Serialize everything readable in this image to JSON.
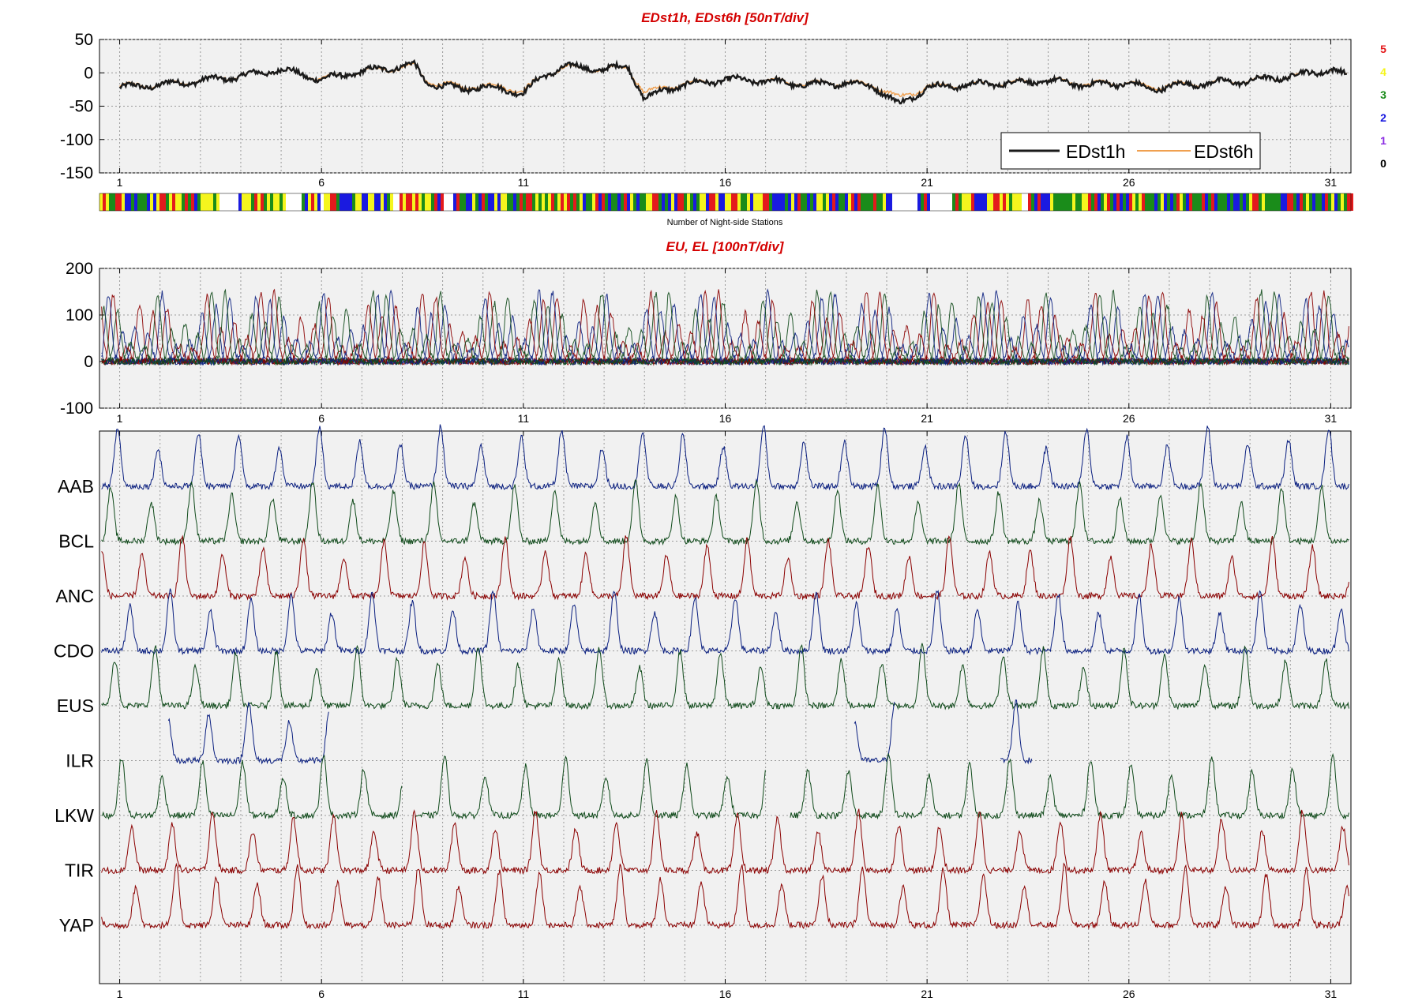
{
  "chart_data": [
    {
      "type": "line",
      "title": "EDst1h, EDst6h [50nT/div]",
      "x_ticks": [
        "1",
        "6",
        "11",
        "16",
        "21",
        "26",
        "31"
      ],
      "xlim": [
        0.5,
        31.5
      ],
      "y_ticks": [
        "50",
        "0",
        "-50",
        "-100",
        "-150"
      ],
      "ylim": [
        -150,
        50
      ],
      "grid": true,
      "legend_position": "bottom-right",
      "series": [
        {
          "name": "EDst1h",
          "color": "#1a1a1a",
          "points": [
            [
              1,
              -22
            ],
            [
              2,
              -18
            ],
            [
              3,
              -12
            ],
            [
              4,
              -5
            ],
            [
              5,
              5
            ],
            [
              6,
              -10
            ],
            [
              7,
              2
            ],
            [
              8,
              10
            ],
            [
              8.3,
              12
            ],
            [
              8.6,
              -15
            ],
            [
              9.5,
              -25
            ],
            [
              10,
              -20
            ],
            [
              11,
              -30
            ],
            [
              11.5,
              -5
            ],
            [
              12,
              10
            ],
            [
              13,
              5
            ],
            [
              13.6,
              10
            ],
            [
              14,
              -40
            ],
            [
              14.5,
              -25
            ],
            [
              15,
              -18
            ],
            [
              16,
              -10
            ],
            [
              17,
              -12
            ],
            [
              18,
              -18
            ],
            [
              19,
              -15
            ],
            [
              19.7,
              -20
            ],
            [
              20.3,
              -48
            ],
            [
              21,
              -22
            ],
            [
              22,
              -18
            ],
            [
              23,
              -15
            ],
            [
              24,
              -12
            ],
            [
              25,
              -18
            ],
            [
              26,
              -15
            ],
            [
              26.5,
              -25
            ],
            [
              27,
              -20
            ],
            [
              28,
              -15
            ],
            [
              29,
              -12
            ],
            [
              30,
              -5
            ],
            [
              31,
              5
            ],
            [
              31.4,
              -5
            ]
          ]
        },
        {
          "name": "EDst6h",
          "color": "#f0a050",
          "points": [
            [
              1,
              -20
            ],
            [
              2,
              -17
            ],
            [
              3,
              -11
            ],
            [
              4,
              -4
            ],
            [
              5,
              4
            ],
            [
              6,
              -8
            ],
            [
              7,
              1
            ],
            [
              8,
              8
            ],
            [
              8.3,
              10
            ],
            [
              8.6,
              -12
            ],
            [
              9.5,
              -22
            ],
            [
              10,
              -18
            ],
            [
              11,
              -26
            ],
            [
              11.5,
              -5
            ],
            [
              12,
              8
            ],
            [
              13,
              4
            ],
            [
              13.6,
              8
            ],
            [
              14,
              -30
            ],
            [
              14.5,
              -22
            ],
            [
              15,
              -16
            ],
            [
              16,
              -10
            ],
            [
              17,
              -11
            ],
            [
              18,
              -16
            ],
            [
              19,
              -14
            ],
            [
              19.7,
              -18
            ],
            [
              20.3,
              -38
            ],
            [
              21,
              -20
            ],
            [
              22,
              -17
            ],
            [
              23,
              -14
            ],
            [
              24,
              -11
            ],
            [
              25,
              -16
            ],
            [
              26,
              -14
            ],
            [
              26.5,
              -22
            ],
            [
              27,
              -18
            ],
            [
              28,
              -14
            ],
            [
              29,
              -11
            ],
            [
              30,
              -4
            ],
            [
              31,
              4
            ],
            [
              31.4,
              -4
            ]
          ]
        }
      ]
    },
    {
      "type": "heatmap",
      "xlabel": "Number of Night-side Stations",
      "colorbar": [
        {
          "label": "5",
          "color": "#e41a1c"
        },
        {
          "label": "4",
          "color": "#f5f51e"
        },
        {
          "label": "3",
          "color": "#1a8c1a"
        },
        {
          "label": "2",
          "color": "#1a1ae0"
        },
        {
          "label": "1",
          "color": "#8a2be2"
        },
        {
          "label": "0",
          "color": "#000000"
        }
      ]
    },
    {
      "type": "line",
      "title": "EU, EL   [100nT/div]",
      "x_ticks": [
        "1",
        "6",
        "11",
        "16",
        "21",
        "26",
        "31"
      ],
      "xlim": [
        0.5,
        31.5
      ],
      "y_ticks": [
        "200",
        "100",
        "0",
        "-100"
      ],
      "ylim": [
        -100,
        200
      ],
      "grid": true,
      "daily_peak": 150,
      "series_colors": [
        "#8b0000",
        "#0a1f80",
        "#0f4a1a"
      ]
    },
    {
      "type": "line",
      "x_ticks": [
        "1",
        "6",
        "11",
        "16",
        "21",
        "26",
        "31"
      ],
      "xlim": [
        0.5,
        31.5
      ],
      "grid": true,
      "stations": [
        {
          "label": "AAB",
          "color": "#0a1f80",
          "phase": 0.55
        },
        {
          "label": "BCL",
          "color": "#0f4a1a",
          "phase": 0.72
        },
        {
          "label": "ANC",
          "color": "#8b0000",
          "phase": 0.95
        },
        {
          "label": "CDO",
          "color": "#0a1f80",
          "phase": 0.25
        },
        {
          "label": "EUS",
          "color": "#0f4a1a",
          "phase": 0.62
        },
        {
          "label": "ILR",
          "color": "#0a1f80",
          "phase": 0.3
        },
        {
          "label": "LKW",
          "color": "#0f4a1a",
          "phase": 0.45
        },
        {
          "label": "TIR",
          "color": "#8b0000",
          "phase": 0.2
        },
        {
          "label": "YAP",
          "color": "#8b0000",
          "phase": 0.1
        }
      ]
    }
  ]
}
